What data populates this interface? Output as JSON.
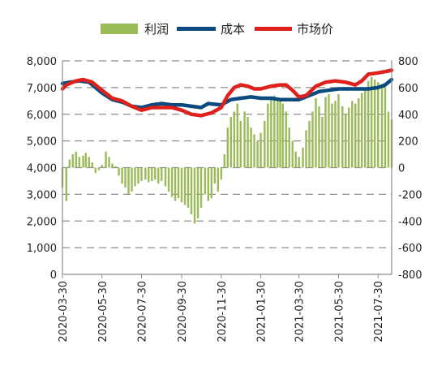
{
  "chart_data": {
    "type": "bar+line",
    "title": "",
    "xlabel": "",
    "ylabel": "",
    "ylim_left": [
      0,
      8000
    ],
    "ylim_right": [
      -800,
      800
    ],
    "left_ticks": [
      "0",
      "1,000",
      "2,000",
      "3,000",
      "4,000",
      "5,000",
      "6,000",
      "7,000",
      "8,000"
    ],
    "right_ticks": [
      "-800",
      "-600",
      "-400",
      "-200",
      "0",
      "200",
      "400",
      "600",
      "800"
    ],
    "x_ticks": [
      "2020-03-30",
      "2020-05-30",
      "2020-07-30",
      "2020-09-30",
      "2020-11-30",
      "2021-01-30",
      "2021-03-30",
      "2021-05-30",
      "2021-07-30"
    ],
    "x_range": [
      "2020-03-30",
      "2021-08-20"
    ],
    "grid": "horizontal-dashed",
    "legend_position": "top",
    "colors": {
      "profit": "#9bbb59",
      "cost": "#0b4a7e",
      "price": "#e0201b"
    },
    "series": [
      {
        "name": "成本",
        "axis": "left",
        "points": [
          [
            "2020-03-30",
            7150
          ],
          [
            "2020-04-10",
            7200
          ],
          [
            "2020-04-25",
            7250
          ],
          [
            "2020-05-10",
            7200
          ],
          [
            "2020-05-30",
            6800
          ],
          [
            "2020-06-15",
            6550
          ],
          [
            "2020-07-01",
            6450
          ],
          [
            "2020-07-15",
            6300
          ],
          [
            "2020-07-30",
            6250
          ],
          [
            "2020-08-15",
            6350
          ],
          [
            "2020-08-30",
            6400
          ],
          [
            "2020-09-15",
            6350
          ],
          [
            "2020-09-30",
            6350
          ],
          [
            "2020-10-15",
            6300
          ],
          [
            "2020-10-30",
            6250
          ],
          [
            "2020-11-10",
            6400
          ],
          [
            "2020-11-30",
            6350
          ],
          [
            "2020-12-15",
            6550
          ],
          [
            "2020-12-30",
            6600
          ],
          [
            "2021-01-15",
            6650
          ],
          [
            "2021-01-30",
            6600
          ],
          [
            "2021-02-15",
            6600
          ],
          [
            "2021-03-01",
            6550
          ],
          [
            "2021-03-15",
            6550
          ],
          [
            "2021-03-30",
            6550
          ],
          [
            "2021-04-15",
            6700
          ],
          [
            "2021-04-30",
            6850
          ],
          [
            "2021-05-15",
            6900
          ],
          [
            "2021-05-30",
            6950
          ],
          [
            "2021-06-15",
            6950
          ],
          [
            "2021-06-30",
            6950
          ],
          [
            "2021-07-15",
            6950
          ],
          [
            "2021-07-30",
            7000
          ],
          [
            "2021-08-10",
            7100
          ],
          [
            "2021-08-20",
            7300
          ]
        ]
      },
      {
        "name": "市场价",
        "axis": "left",
        "points": [
          [
            "2020-03-30",
            6950
          ],
          [
            "2020-04-05",
            7100
          ],
          [
            "2020-04-20",
            7250
          ],
          [
            "2020-05-01",
            7300
          ],
          [
            "2020-05-15",
            7200
          ],
          [
            "2020-05-30",
            6900
          ],
          [
            "2020-06-15",
            6600
          ],
          [
            "2020-06-30",
            6500
          ],
          [
            "2020-07-15",
            6300
          ],
          [
            "2020-07-30",
            6150
          ],
          [
            "2020-08-15",
            6250
          ],
          [
            "2020-08-30",
            6250
          ],
          [
            "2020-09-15",
            6250
          ],
          [
            "2020-09-30",
            6150
          ],
          [
            "2020-10-15",
            6000
          ],
          [
            "2020-10-30",
            5950
          ],
          [
            "2020-11-15",
            6050
          ],
          [
            "2020-11-30",
            6250
          ],
          [
            "2020-12-10",
            6700
          ],
          [
            "2020-12-20",
            7000
          ],
          [
            "2020-12-30",
            7100
          ],
          [
            "2021-01-10",
            7050
          ],
          [
            "2021-01-20",
            6950
          ],
          [
            "2021-01-30",
            6950
          ],
          [
            "2021-02-15",
            7050
          ],
          [
            "2021-03-01",
            7100
          ],
          [
            "2021-03-10",
            7100
          ],
          [
            "2021-03-20",
            6900
          ],
          [
            "2021-03-30",
            6650
          ],
          [
            "2021-04-10",
            6700
          ],
          [
            "2021-04-25",
            7050
          ],
          [
            "2021-05-10",
            7200
          ],
          [
            "2021-05-25",
            7250
          ],
          [
            "2021-06-10",
            7200
          ],
          [
            "2021-06-25",
            7100
          ],
          [
            "2021-07-05",
            7250
          ],
          [
            "2021-07-15",
            7500
          ],
          [
            "2021-07-30",
            7550
          ],
          [
            "2021-08-10",
            7600
          ],
          [
            "2021-08-20",
            7650
          ]
        ]
      },
      {
        "name": "利润",
        "axis": "right",
        "type": "bar",
        "points": [
          [
            "2020-03-30",
            -150
          ],
          [
            "2020-04-05",
            -250
          ],
          [
            "2020-04-10",
            60
          ],
          [
            "2020-04-15",
            100
          ],
          [
            "2020-04-20",
            120
          ],
          [
            "2020-04-25",
            80
          ],
          [
            "2020-05-01",
            90
          ],
          [
            "2020-05-05",
            110
          ],
          [
            "2020-05-10",
            80
          ],
          [
            "2020-05-15",
            40
          ],
          [
            "2020-05-20",
            -40
          ],
          [
            "2020-05-25",
            -20
          ],
          [
            "2020-05-30",
            20
          ],
          [
            "2020-06-05",
            120
          ],
          [
            "2020-06-10",
            80
          ],
          [
            "2020-06-15",
            30
          ],
          [
            "2020-06-20",
            10
          ],
          [
            "2020-06-25",
            -60
          ],
          [
            "2020-06-30",
            -120
          ],
          [
            "2020-07-05",
            -150
          ],
          [
            "2020-07-10",
            -200
          ],
          [
            "2020-07-15",
            -180
          ],
          [
            "2020-07-20",
            -140
          ],
          [
            "2020-07-25",
            -120
          ],
          [
            "2020-07-30",
            -100
          ],
          [
            "2020-08-05",
            -90
          ],
          [
            "2020-08-10",
            -110
          ],
          [
            "2020-08-15",
            -100
          ],
          [
            "2020-08-20",
            -90
          ],
          [
            "2020-08-25",
            -120
          ],
          [
            "2020-08-30",
            -100
          ],
          [
            "2020-09-05",
            -140
          ],
          [
            "2020-09-10",
            -180
          ],
          [
            "2020-09-15",
            -220
          ],
          [
            "2020-09-20",
            -250
          ],
          [
            "2020-09-25",
            -230
          ],
          [
            "2020-09-30",
            -260
          ],
          [
            "2020-10-05",
            -280
          ],
          [
            "2020-10-10",
            -300
          ],
          [
            "2020-10-15",
            -350
          ],
          [
            "2020-10-20",
            -420
          ],
          [
            "2020-10-25",
            -380
          ],
          [
            "2020-10-30",
            -300
          ],
          [
            "2020-11-05",
            -200
          ],
          [
            "2020-11-10",
            -250
          ],
          [
            "2020-11-15",
            -230
          ],
          [
            "2020-11-20",
            -120
          ],
          [
            "2020-11-25",
            -180
          ],
          [
            "2020-11-30",
            -90
          ],
          [
            "2020-12-05",
            100
          ],
          [
            "2020-12-10",
            300
          ],
          [
            "2020-12-15",
            380
          ],
          [
            "2020-12-20",
            420
          ],
          [
            "2020-12-25",
            480
          ],
          [
            "2020-12-30",
            350
          ],
          [
            "2021-01-05",
            420
          ],
          [
            "2021-01-10",
            380
          ],
          [
            "2021-01-15",
            300
          ],
          [
            "2021-01-20",
            250
          ],
          [
            "2021-01-25",
            200
          ],
          [
            "2021-01-30",
            260
          ],
          [
            "2021-02-05",
            350
          ],
          [
            "2021-02-10",
            480
          ],
          [
            "2021-02-15",
            520
          ],
          [
            "2021-02-20",
            540
          ],
          [
            "2021-02-25",
            500
          ],
          [
            "2021-03-01",
            520
          ],
          [
            "2021-03-05",
            480
          ],
          [
            "2021-03-10",
            420
          ],
          [
            "2021-03-15",
            300
          ],
          [
            "2021-03-20",
            200
          ],
          [
            "2021-03-25",
            120
          ],
          [
            "2021-03-30",
            80
          ],
          [
            "2021-04-05",
            150
          ],
          [
            "2021-04-10",
            280
          ],
          [
            "2021-04-15",
            350
          ],
          [
            "2021-04-20",
            420
          ],
          [
            "2021-04-25",
            520
          ],
          [
            "2021-04-30",
            460
          ],
          [
            "2021-05-05",
            380
          ],
          [
            "2021-05-10",
            530
          ],
          [
            "2021-05-15",
            550
          ],
          [
            "2021-05-20",
            480
          ],
          [
            "2021-05-25",
            500
          ],
          [
            "2021-05-30",
            550
          ],
          [
            "2021-06-05",
            460
          ],
          [
            "2021-06-10",
            400
          ],
          [
            "2021-06-15",
            450
          ],
          [
            "2021-06-20",
            500
          ],
          [
            "2021-06-25",
            480
          ],
          [
            "2021-06-30",
            520
          ],
          [
            "2021-07-05",
            560
          ],
          [
            "2021-07-10",
            600
          ],
          [
            "2021-07-15",
            650
          ],
          [
            "2021-07-20",
            680
          ],
          [
            "2021-07-25",
            660
          ],
          [
            "2021-07-30",
            640
          ],
          [
            "2021-08-05",
            620
          ],
          [
            "2021-08-10",
            600
          ],
          [
            "2021-08-15",
            420
          ],
          [
            "2021-08-20",
            360
          ]
        ]
      }
    ]
  }
}
